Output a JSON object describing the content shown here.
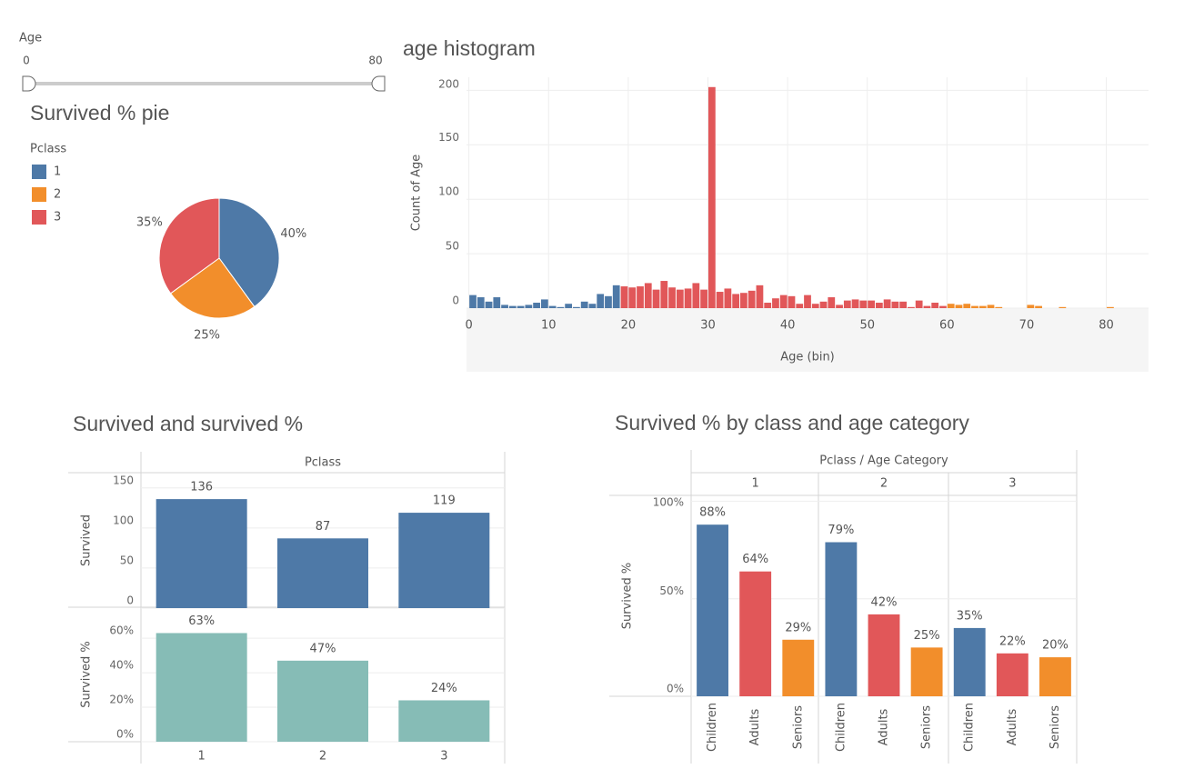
{
  "filter": {
    "label": "Age",
    "min": 0,
    "max": 80
  },
  "chart_data": [
    {
      "type": "pie",
      "title": "Survived % pie",
      "legend_title": "Pclass",
      "categories": [
        "1",
        "2",
        "3"
      ],
      "values": [
        40,
        25,
        35
      ],
      "value_labels": [
        "40%",
        "25%",
        "35%"
      ],
      "colors": [
        "#4e79a7",
        "#f28e2b",
        "#e15759"
      ]
    },
    {
      "type": "histogram",
      "title": "age histogram",
      "xlabel": "Age (bin)",
      "ylabel": "Count of Age",
      "bins": [
        0,
        1,
        2,
        3,
        4,
        5,
        6,
        7,
        8,
        9,
        10,
        11,
        12,
        13,
        14,
        15,
        16,
        17,
        18,
        19,
        20,
        21,
        22,
        23,
        24,
        25,
        26,
        27,
        28,
        29,
        30,
        31,
        32,
        33,
        34,
        35,
        36,
        37,
        38,
        39,
        40,
        41,
        42,
        43,
        44,
        45,
        46,
        47,
        48,
        49,
        50,
        51,
        52,
        53,
        54,
        55,
        56,
        57,
        58,
        59,
        60,
        61,
        62,
        63,
        64,
        65,
        66,
        67,
        68,
        69,
        70,
        71,
        72,
        73,
        74,
        75,
        76,
        77,
        78,
        79,
        80,
        81
      ],
      "values": [
        12,
        10,
        6,
        10,
        3,
        2,
        2,
        3,
        5,
        8,
        2,
        1,
        4,
        1,
        6,
        4,
        13,
        11,
        21,
        20,
        19,
        20,
        23,
        17,
        25,
        19,
        17,
        18,
        23,
        17,
        203,
        15,
        18,
        13,
        14,
        16,
        21,
        5,
        9,
        12,
        11,
        4,
        12,
        4,
        6,
        10,
        3,
        7,
        8,
        7,
        7,
        5,
        8,
        6,
        6,
        1,
        7,
        2,
        5,
        2,
        4,
        3,
        4,
        2,
        2,
        3,
        1,
        0,
        0,
        0,
        3,
        2,
        0,
        0,
        1,
        0,
        0,
        0,
        0,
        0,
        1
      ],
      "colors": [
        "#4e79a7",
        "#4e79a7",
        "#4e79a7",
        "#4e79a7",
        "#4e79a7",
        "#4e79a7",
        "#4e79a7",
        "#4e79a7",
        "#4e79a7",
        "#4e79a7",
        "#4e79a7",
        "#4e79a7",
        "#4e79a7",
        "#4e79a7",
        "#4e79a7",
        "#4e79a7",
        "#4e79a7",
        "#4e79a7",
        "#4e79a7",
        "#e15759",
        "#e15759",
        "#e15759",
        "#e15759",
        "#e15759",
        "#e15759",
        "#e15759",
        "#e15759",
        "#e15759",
        "#e15759",
        "#e15759",
        "#e15759",
        "#e15759",
        "#e15759",
        "#e15759",
        "#e15759",
        "#e15759",
        "#e15759",
        "#e15759",
        "#e15759",
        "#e15759",
        "#e15759",
        "#e15759",
        "#e15759",
        "#e15759",
        "#e15759",
        "#e15759",
        "#e15759",
        "#e15759",
        "#e15759",
        "#e15759",
        "#e15759",
        "#e15759",
        "#e15759",
        "#e15759",
        "#e15759",
        "#e15759",
        "#e15759",
        "#e15759",
        "#e15759",
        "#e15759",
        "#f28e2b",
        "#f28e2b",
        "#f28e2b",
        "#f28e2b",
        "#f28e2b",
        "#f28e2b",
        "#f28e2b",
        "#f28e2b",
        "#f28e2b",
        "#f28e2b",
        "#f28e2b",
        "#f28e2b",
        "#f28e2b",
        "#f28e2b",
        "#f28e2b",
        "#f28e2b",
        "#f28e2b",
        "#f28e2b",
        "#f28e2b",
        "#f28e2b",
        "#f28e2b"
      ],
      "xlim": [
        -0.3,
        85.3
      ],
      "ylim": [
        0,
        212
      ],
      "xticks": [
        0,
        10,
        20,
        30,
        40,
        50,
        60,
        70,
        80
      ],
      "yticks": [
        0,
        50,
        100,
        150,
        200
      ],
      "grid": true
    },
    {
      "type": "bar",
      "title": "Survived and survived %",
      "header": "Pclass",
      "ylabel": "Survived",
      "values": [
        136,
        87,
        119
      ],
      "color": "#4e79a7",
      "ylim": [
        0,
        169
      ],
      "yticks": [
        0,
        50,
        100,
        150
      ],
      "grid": true
    },
    {
      "type": "bar",
      "ylabel": "Survived %",
      "categories": [
        "1",
        "2",
        "3"
      ],
      "values": [
        63,
        47,
        24
      ],
      "value_labels": [
        "63%",
        "47%",
        "24%"
      ],
      "color": "#86bcb6",
      "ylim": [
        0,
        78
      ],
      "yticks": [
        {
          "value": 0,
          "label": "0%"
        },
        {
          "value": 20,
          "label": "20%"
        },
        {
          "value": 40,
          "label": "40%"
        },
        {
          "value": 60,
          "label": "60%"
        }
      ],
      "grid": true
    },
    {
      "type": "grouped_bar",
      "title": "Survived % by class and age category",
      "header": "Pclass / Age Category",
      "ylabel": "Survived %",
      "categories": [
        "1",
        "2",
        "3"
      ],
      "series": [
        {
          "name": "Children",
          "color": "#4e79a7",
          "values": [
            88,
            79,
            35
          ],
          "value_labels": [
            "88%",
            "79%",
            "35%"
          ]
        },
        {
          "name": "Adults",
          "color": "#e15759",
          "values": [
            64,
            42,
            22
          ],
          "value_labels": [
            "64%",
            "42%",
            "22%"
          ]
        },
        {
          "name": "Seniors",
          "color": "#f28e2b",
          "values": [
            29,
            25,
            20
          ],
          "value_labels": [
            "29%",
            "25%",
            "20%"
          ]
        }
      ],
      "ylim": [
        0,
        103
      ],
      "yticks": [
        {
          "value": 0,
          "label": "0%"
        },
        {
          "value": 50,
          "label": "50%"
        },
        {
          "value": 100,
          "label": "100%"
        }
      ],
      "grid": true
    }
  ]
}
